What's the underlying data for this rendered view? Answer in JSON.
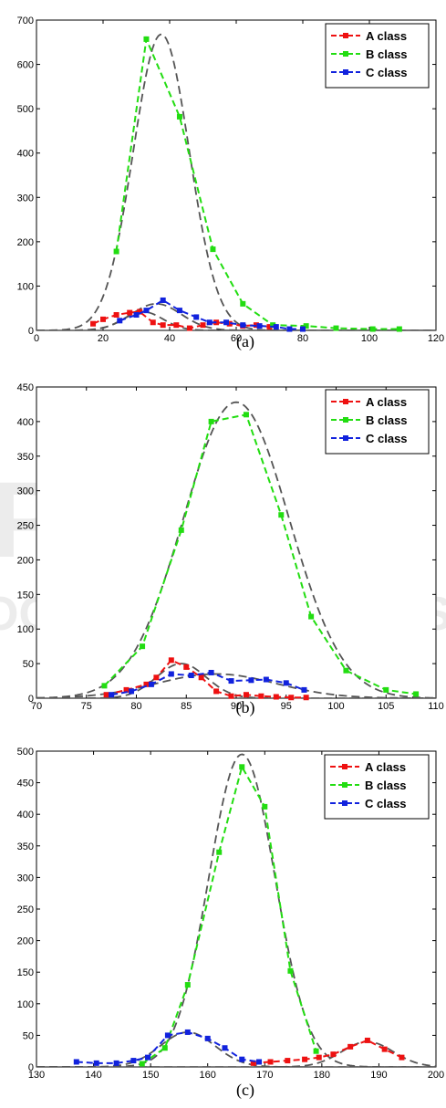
{
  "colors": {
    "A": "#ee1111",
    "B": "#22dd11",
    "C": "#1122dd",
    "fit": "#555555"
  },
  "watermark": {
    "line1": "PRESS",
    "line2": "OGY PUBLICATIONS"
  },
  "chart_data": [
    {
      "type": "line",
      "caption": "(a)",
      "xlim": [
        0,
        120
      ],
      "ylim": [
        0,
        700
      ],
      "xticks": [
        0,
        20,
        40,
        60,
        80,
        100,
        120
      ],
      "yticks": [
        0,
        100,
        200,
        300,
        400,
        500,
        600,
        700
      ],
      "legend": [
        "A class",
        "B class",
        "C class"
      ],
      "legend_position": "top-right",
      "series": [
        {
          "name": "A class",
          "color": "A",
          "x": [
            17,
            20,
            24,
            28,
            31,
            35,
            38,
            42,
            46,
            50,
            54,
            58,
            62,
            66,
            70
          ],
          "y": [
            15,
            25,
            35,
            40,
            42,
            18,
            12,
            12,
            5,
            12,
            18,
            15,
            10,
            12,
            8
          ]
        },
        {
          "name": "B class",
          "color": "B",
          "x": [
            24,
            33,
            43,
            53,
            62,
            71,
            81,
            90,
            101,
            109
          ],
          "y": [
            178,
            657,
            482,
            183,
            60,
            12,
            10,
            5,
            3,
            3
          ]
        },
        {
          "name": "C class",
          "color": "C",
          "x": [
            25,
            30,
            33,
            38,
            43,
            48,
            52,
            57,
            62,
            67,
            72,
            76,
            80
          ],
          "y": [
            22,
            35,
            45,
            68,
            45,
            30,
            18,
            18,
            12,
            10,
            8,
            3,
            3
          ]
        }
      ],
      "fits": [
        {
          "mean": 37.5,
          "sd": 8.4,
          "peak": 668
        },
        {
          "mean": 36,
          "sd": 7.5,
          "peak": 60
        },
        {
          "mean": 32,
          "sd": 6,
          "peak": 42
        }
      ]
    },
    {
      "type": "line",
      "caption": "(b)",
      "xlim": [
        70,
        110
      ],
      "ylim": [
        0,
        450
      ],
      "xticks": [
        70,
        75,
        80,
        85,
        90,
        95,
        100,
        105,
        110
      ],
      "yticks": [
        0,
        50,
        100,
        150,
        200,
        250,
        300,
        350,
        400,
        450
      ],
      "legend": [
        "A class",
        "B class",
        "C class"
      ],
      "legend_position": "top-right",
      "series": [
        {
          "name": "A class",
          "color": "A",
          "x": [
            77,
            79,
            81,
            82,
            83.5,
            85,
            86.5,
            88,
            89.5,
            91,
            92.5,
            94,
            95.5,
            97
          ],
          "y": [
            5,
            12,
            20,
            30,
            55,
            45,
            30,
            10,
            3,
            5,
            3,
            2,
            1,
            1
          ]
        },
        {
          "name": "B class",
          "color": "B",
          "x": [
            76.8,
            80.6,
            84.5,
            87.5,
            91,
            94.5,
            97.5,
            101,
            105,
            108
          ],
          "y": [
            18,
            75,
            243,
            400,
            410,
            265,
            118,
            40,
            12,
            6
          ]
        },
        {
          "name": "C class",
          "color": "C",
          "x": [
            77.5,
            79.5,
            81.5,
            83.5,
            85.5,
            87.5,
            89.5,
            91.5,
            93,
            95,
            96.8
          ],
          "y": [
            5,
            10,
            20,
            35,
            33,
            37,
            25,
            26,
            27,
            22,
            12
          ]
        }
      ],
      "fits": [
        {
          "mean": 90,
          "sd": 5.3,
          "peak": 428
        },
        {
          "mean": 84.5,
          "sd": 2.5,
          "peak": 50
        },
        {
          "mean": 88,
          "sd": 6,
          "peak": 35
        }
      ]
    },
    {
      "type": "line",
      "caption": "(c)",
      "xlim": [
        130,
        200
      ],
      "ylim": [
        0,
        500
      ],
      "xticks": [
        130,
        140,
        150,
        160,
        170,
        180,
        190,
        200
      ],
      "yticks": [
        0,
        50,
        100,
        150,
        200,
        250,
        300,
        350,
        400,
        450,
        500
      ],
      "legend": [
        "A class",
        "B class",
        "C class"
      ],
      "legend_position": "top-right",
      "series": [
        {
          "name": "A class",
          "color": "A",
          "x": [
            168,
            171,
            174,
            177,
            179.5,
            182,
            185,
            188,
            191,
            194
          ],
          "y": [
            6,
            8,
            10,
            12,
            15,
            20,
            32,
            42,
            28,
            15
          ]
        },
        {
          "name": "B class",
          "color": "B",
          "x": [
            148.5,
            152.5,
            156.5,
            162,
            166,
            170,
            174.5,
            179
          ],
          "y": [
            5,
            30,
            130,
            340,
            475,
            412,
            152,
            25
          ]
        },
        {
          "name": "C class",
          "color": "C",
          "x": [
            137,
            140.5,
            144,
            147,
            149.5,
            153,
            156.5,
            160,
            163,
            166,
            169
          ],
          "y": [
            8,
            6,
            6,
            10,
            15,
            50,
            55,
            45,
            30,
            12,
            8
          ]
        }
      ],
      "fits": [
        {
          "mean": 166,
          "sd": 5.8,
          "peak": 495
        },
        {
          "mean": 156.5,
          "sd": 4.8,
          "peak": 55
        },
        {
          "mean": 188,
          "sd": 4.5,
          "peak": 40
        }
      ]
    }
  ]
}
